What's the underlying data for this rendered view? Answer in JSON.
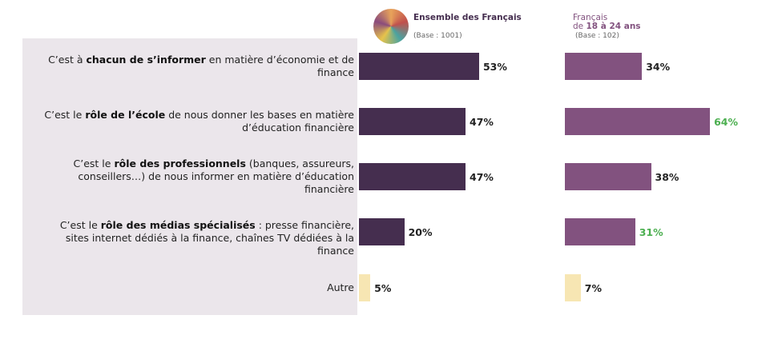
{
  "chart_data": {
    "type": "bar",
    "orientation": "horizontal",
    "categories": [
      {
        "pre": "C’est à ",
        "bold": "chacun de s’informer",
        "post": " en matière d’économie et de finance"
      },
      {
        "pre": "C’est le ",
        "bold": "rôle de l’école",
        "post": " de nous donner les bases en matière d’éducation financière"
      },
      {
        "pre": "C’est le ",
        "bold": "rôle des professionnels",
        "post": " (banques, assureurs, conseillers…) de nous informer en matière d’éducation financière"
      },
      {
        "pre": "C’est le ",
        "bold": "rôle des médias spécialisés",
        "post": " : presse financière, sites internet dédiés à la finance, chaînes TV dédiées à la finance"
      },
      {
        "pre": "",
        "bold": "",
        "post": "Autre"
      }
    ],
    "series": [
      {
        "name": "Ensemble des Français",
        "base": "(Base : 1001)",
        "values": [
          53,
          47,
          47,
          20,
          5
        ],
        "labels": [
          "53%",
          "47%",
          "47%",
          "20%",
          "5%"
        ],
        "color": "#452e4f",
        "highlight": [
          false,
          false,
          false,
          false,
          false
        ]
      },
      {
        "name": "Français de 18 à 24 ans",
        "name_pre": "Français",
        "name_de": "de ",
        "name_bold": "18 à 24 ans",
        "base": "(Base : 102)",
        "values": [
          34,
          64,
          38,
          31,
          7
        ],
        "labels": [
          "34%",
          "64%",
          "38%",
          "31%",
          "7%"
        ],
        "color": "#82527f",
        "highlight": [
          false,
          true,
          false,
          true,
          false
        ]
      }
    ],
    "other_color": "#f7e6b3",
    "highlight_color": "#4caf50",
    "xlim": [
      0,
      100
    ]
  }
}
